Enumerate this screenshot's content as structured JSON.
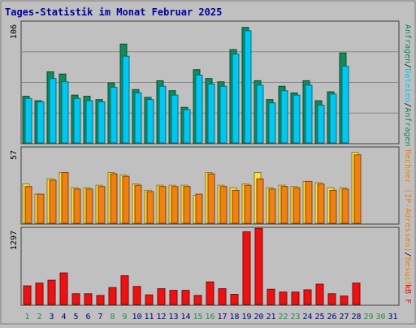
{
  "title": "Tages-Statistik im Monat Februar 2025",
  "colors": {
    "background": "#c0c0c0",
    "panel": "#c0c0c0",
    "title": "#0000a0",
    "anfragen": "#128a5a",
    "dateien": "#00c8f0",
    "rechner": "#ffe040",
    "besuche": "#f08010",
    "kb": "#ee1111",
    "weekend_day_label": "#1f9050",
    "day_label": "#000080",
    "grid": "#888888"
  },
  "chart_data": [
    {
      "type": "bar",
      "panel": "top",
      "y_max_label": "106",
      "ylim": [
        0,
        106
      ],
      "legend": [
        "Anfragen",
        "/",
        "Dateien",
        "/",
        "Anfragen"
      ],
      "categories": [
        "1",
        "2",
        "3",
        "4",
        "5",
        "6",
        "7",
        "8",
        "9",
        "10",
        "11",
        "12",
        "13",
        "14",
        "15",
        "16",
        "17",
        "18",
        "19",
        "20",
        "21",
        "22",
        "23",
        "24",
        "25",
        "26",
        "27",
        "28",
        "29",
        "30",
        "31"
      ],
      "series": [
        {
          "name": "Anfragen",
          "values": [
            42,
            38,
            64,
            62,
            43,
            42,
            39,
            54,
            89,
            48,
            41,
            56,
            47,
            32,
            66,
            58,
            55,
            84,
            104,
            56,
            39,
            51,
            45,
            56,
            38,
            46,
            81,
            0,
            0,
            0,
            0
          ]
        },
        {
          "name": "Dateien",
          "values": [
            40,
            37,
            58,
            55,
            40,
            38,
            37,
            50,
            78,
            45,
            39,
            51,
            43,
            30,
            61,
            53,
            51,
            80,
            101,
            52,
            36,
            47,
            43,
            52,
            34,
            44,
            69,
            0,
            0,
            0,
            0
          ]
        }
      ]
    },
    {
      "type": "bar",
      "panel": "middle",
      "y_max_label": "57",
      "ylim": [
        0,
        57
      ],
      "legend": [
        "Rechner",
        "(IP-Adressen)",
        "/",
        "Besuche"
      ],
      "categories": [
        "1",
        "2",
        "3",
        "4",
        "5",
        "6",
        "7",
        "8",
        "9",
        "10",
        "11",
        "12",
        "13",
        "14",
        "15",
        "16",
        "17",
        "18",
        "19",
        "20",
        "21",
        "22",
        "23",
        "24",
        "25",
        "26",
        "27",
        "28",
        "29",
        "30",
        "31"
      ],
      "series": [
        {
          "name": "Rechner",
          "values": [
            31,
            23,
            35,
            40,
            28,
            28,
            30,
            40,
            38,
            31,
            26,
            30,
            30,
            30,
            22,
            40,
            30,
            28,
            31,
            40,
            28,
            30,
            29,
            33,
            32,
            28,
            28,
            56,
            0,
            0,
            0
          ]
        },
        {
          "name": "Besuche",
          "values": [
            29,
            23,
            34,
            40,
            27,
            27,
            29,
            39,
            37,
            30,
            25,
            29,
            29,
            29,
            23,
            39,
            29,
            26,
            30,
            35,
            27,
            29,
            28,
            33,
            31,
            26,
            27,
            54,
            0,
            0,
            0
          ]
        }
      ]
    },
    {
      "type": "bar",
      "panel": "bottom",
      "y_max_label": "1297",
      "ylim": [
        0,
        1297
      ],
      "legend": [
        "kB",
        "F"
      ],
      "categories": [
        "1",
        "2",
        "3",
        "4",
        "5",
        "6",
        "7",
        "8",
        "9",
        "10",
        "11",
        "12",
        "13",
        "14",
        "15",
        "16",
        "17",
        "18",
        "19",
        "20",
        "21",
        "22",
        "23",
        "24",
        "25",
        "26",
        "27",
        "28",
        "29",
        "30",
        "31"
      ],
      "series": [
        {
          "name": "kB",
          "values": [
            330,
            380,
            430,
            560,
            190,
            190,
            160,
            300,
            510,
            320,
            170,
            280,
            250,
            250,
            160,
            400,
            280,
            180,
            1290,
            1350,
            270,
            220,
            220,
            260,
            360,
            190,
            150,
            380,
            0,
            0,
            0
          ]
        }
      ]
    }
  ],
  "x_axis": {
    "days": [
      "1",
      "2",
      "3",
      "4",
      "5",
      "6",
      "7",
      "8",
      "9",
      "10",
      "11",
      "12",
      "13",
      "14",
      "15",
      "16",
      "17",
      "18",
      "19",
      "20",
      "21",
      "22",
      "23",
      "24",
      "25",
      "26",
      "27",
      "28",
      "29",
      "30",
      "31"
    ],
    "weekend_days": [
      "1",
      "2",
      "8",
      "9",
      "15",
      "16",
      "22",
      "23",
      "29",
      "30"
    ]
  }
}
